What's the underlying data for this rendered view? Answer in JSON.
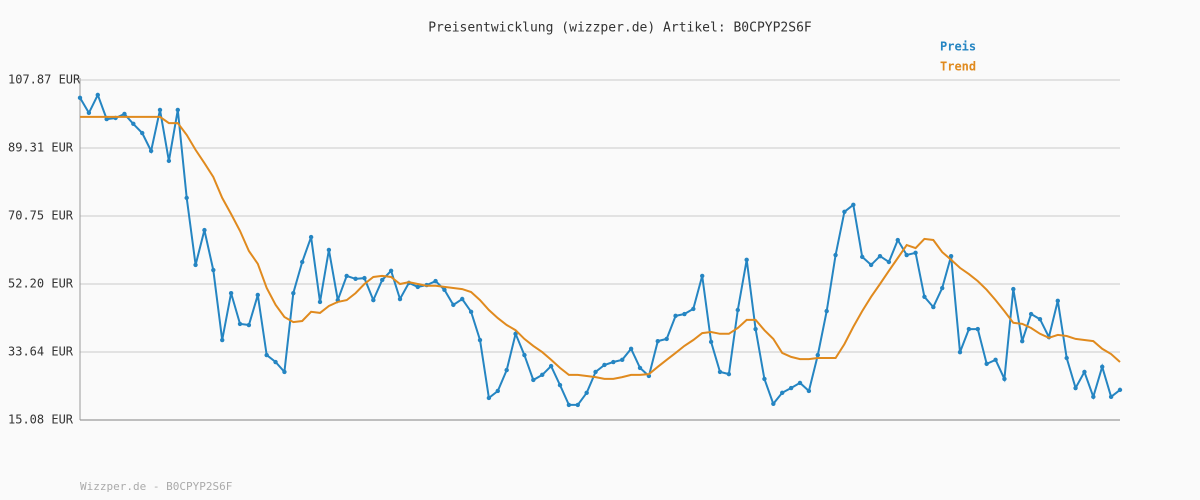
{
  "chart_data": {
    "type": "line",
    "title": "Preisentwicklung (wizzper.de) Artikel: B0CPYP2S6F",
    "footer": "Wizzper.de - B0CPYP2S6F",
    "ylim": [
      15.08,
      107.87
    ],
    "yticks": [
      {
        "value": 15.08,
        "label": "15.08 EUR"
      },
      {
        "value": 33.64,
        "label": "33.64 EUR"
      },
      {
        "value": 52.2,
        "label": "52.20 EUR"
      },
      {
        "value": 70.75,
        "label": "70.75 EUR"
      },
      {
        "value": 89.31,
        "label": "89.31 EUR"
      },
      {
        "value": 107.87,
        "label": "107.87 EUR"
      }
    ],
    "grid": true,
    "legend": "top-right",
    "series": [
      {
        "name": "Preis",
        "color": "#2585c2",
        "markers": true,
        "values": [
          103.0,
          98.9,
          103.8,
          97.2,
          97.5,
          98.6,
          95.9,
          93.4,
          88.5,
          99.7,
          85.8,
          99.7,
          75.7,
          57.4,
          66.9,
          56.0,
          36.9,
          49.7,
          41.3,
          41.0,
          49.2,
          32.8,
          30.9,
          28.2,
          49.7,
          58.2,
          65.0,
          47.3,
          61.5,
          47.8,
          54.4,
          53.6,
          53.8,
          47.8,
          53.3,
          55.8,
          48.1,
          52.5,
          51.4,
          51.9,
          53.0,
          50.6,
          46.5,
          48.1,
          44.6,
          36.9,
          21.1,
          23.0,
          28.7,
          38.6,
          32.8,
          26.0,
          27.4,
          29.8,
          24.6,
          19.2,
          19.2,
          22.5,
          28.2,
          30.1,
          30.9,
          31.5,
          34.5,
          29.3,
          27.1,
          36.6,
          37.2,
          43.5,
          44.0,
          45.4,
          54.4,
          36.4,
          28.2,
          27.6,
          45.1,
          58.8,
          39.9,
          26.3,
          19.5,
          22.5,
          23.8,
          25.2,
          23.0,
          32.8,
          44.8,
          60.1,
          71.9,
          73.8,
          59.6,
          57.4,
          59.8,
          58.2,
          64.2,
          60.1,
          60.7,
          48.7,
          45.9,
          51.1,
          59.8,
          33.6,
          39.9,
          39.9,
          30.4,
          31.5,
          26.3,
          50.8,
          36.6,
          44.0,
          42.6,
          37.7,
          47.6,
          32.0,
          23.8,
          28.2,
          21.4,
          29.6,
          21.4,
          23.3
        ]
      },
      {
        "name": "Trend",
        "color": "#e08a1e",
        "markers": false,
        "values": [
          97.8,
          97.8,
          97.8,
          97.8,
          97.8,
          97.8,
          97.8,
          97.8,
          97.8,
          97.8,
          96.1,
          96.1,
          92.9,
          88.8,
          85.2,
          81.4,
          75.7,
          71.3,
          66.7,
          61.2,
          57.7,
          51.1,
          46.5,
          43.2,
          41.8,
          42.1,
          44.6,
          44.3,
          46.2,
          47.3,
          47.8,
          49.7,
          52.2,
          54.1,
          54.4,
          54.1,
          52.2,
          52.7,
          52.2,
          51.7,
          51.7,
          51.4,
          51.1,
          50.8,
          50.0,
          47.8,
          45.1,
          42.9,
          41.0,
          39.6,
          37.2,
          35.3,
          33.6,
          31.5,
          29.3,
          27.4,
          27.4,
          27.1,
          26.8,
          26.3,
          26.3,
          26.8,
          27.4,
          27.4,
          27.6,
          29.6,
          31.5,
          33.4,
          35.3,
          36.9,
          38.8,
          39.1,
          38.6,
          38.6,
          40.2,
          42.4,
          42.4,
          39.6,
          37.2,
          33.4,
          32.3,
          31.7,
          31.7,
          32.0,
          32.0,
          32.0,
          35.8,
          40.5,
          44.8,
          48.7,
          52.2,
          55.8,
          59.3,
          62.8,
          62.0,
          64.5,
          64.2,
          60.9,
          58.8,
          56.6,
          54.9,
          53.0,
          50.6,
          47.8,
          44.8,
          41.6,
          41.3,
          40.2,
          38.6,
          37.5,
          38.3,
          38.0,
          37.2,
          36.9,
          36.6,
          34.5,
          33.1,
          30.9
        ]
      }
    ]
  }
}
